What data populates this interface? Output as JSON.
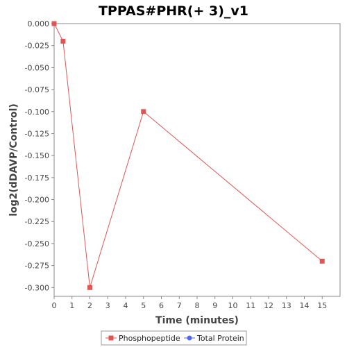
{
  "chart_data": {
    "type": "line",
    "title": "TPPAS#PHR(+ 3)_v1",
    "xlabel": "Time (minutes)",
    "ylabel": "log2(dDAVP/Control)",
    "xlim": [
      0,
      16
    ],
    "ylim": [
      -0.31,
      0.0
    ],
    "x_ticks": [
      "0",
      "1",
      "2",
      "3",
      "4",
      "5",
      "6",
      "7",
      "8",
      "9",
      "10",
      "11",
      "12",
      "13",
      "14",
      "15"
    ],
    "y_ticks": [
      "0.000",
      "-0.025",
      "-0.050",
      "-0.075",
      "-0.100",
      "-0.125",
      "-0.150",
      "-0.175",
      "-0.200",
      "-0.225",
      "-0.250",
      "-0.275",
      "-0.300"
    ],
    "grid": false,
    "legend_position": "bottom",
    "series": [
      {
        "name": "Phosphopeptide",
        "color": "#e05555",
        "marker": "square",
        "x": [
          0,
          0.5,
          2,
          5,
          15
        ],
        "y": [
          0.0,
          -0.02,
          -0.3,
          -0.1,
          -0.27
        ]
      },
      {
        "name": "Total Protein",
        "color": "#5566ee",
        "marker": "circle",
        "x": [],
        "y": []
      }
    ]
  }
}
